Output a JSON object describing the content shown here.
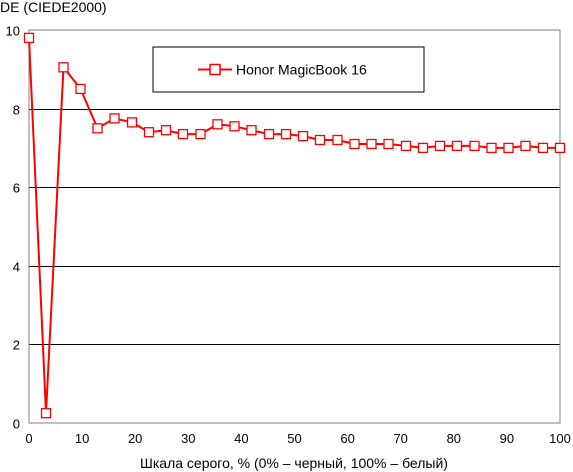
{
  "chart_data": {
    "type": "line",
    "ylabel": "DE (CIEDE2000)",
    "xlabel": "Шкала серого, % (0% – черный, 100% – белый)",
    "xlim": [
      0,
      100
    ],
    "ylim": [
      0,
      10
    ],
    "x_ticks": [
      "0",
      "10",
      "20",
      "30",
      "40",
      "50",
      "60",
      "70",
      "80",
      "90",
      "100"
    ],
    "y_ticks": [
      "0",
      "2",
      "4",
      "6",
      "8",
      "10"
    ],
    "grid": "horizontal",
    "legend_position": "top-center",
    "series": [
      {
        "name": "Honor MagicBook 16",
        "color": "#ff0000",
        "marker": "square",
        "x": [
          0,
          3.2,
          6.5,
          9.7,
          12.9,
          16.1,
          19.4,
          22.6,
          25.8,
          29.0,
          32.3,
          35.5,
          38.7,
          41.9,
          45.2,
          48.4,
          51.6,
          54.8,
          58.1,
          61.3,
          64.5,
          67.7,
          71.0,
          74.2,
          77.4,
          80.6,
          83.9,
          87.1,
          90.3,
          93.5,
          96.8,
          100
        ],
        "y": [
          9.8,
          0.25,
          9.05,
          8.5,
          7.5,
          7.75,
          7.65,
          7.4,
          7.45,
          7.35,
          7.35,
          7.6,
          7.55,
          7.45,
          7.35,
          7.35,
          7.3,
          7.2,
          7.2,
          7.1,
          7.1,
          7.1,
          7.05,
          7.0,
          7.05,
          7.05,
          7.05,
          7.0,
          7.0,
          7.05,
          7.0,
          7.0
        ]
      }
    ]
  }
}
